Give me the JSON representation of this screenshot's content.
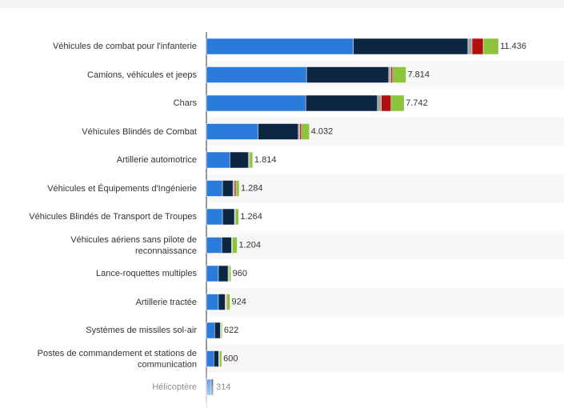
{
  "chart_data": {
    "type": "stacked-bar-horizontal",
    "categories": [
      "Véhicules de combat pour l'infanterie",
      "Camions, véhicules et jeeps",
      "Chars",
      "Véhicules Blindés de Combat",
      "Artillerie automotrice",
      "Véhicules et Équipements d'Ingénierie",
      "Véhicules Blindés de Transport de Troupes",
      "Véhicules aériens sans pilote de reconnaissance",
      "Lance-roquettes multiples",
      "Artillerie tractée",
      "Systèmes de missiles sol-air",
      "Postes de commandement et stations de communication",
      "Hélicoptère"
    ],
    "series": [
      {
        "color": "#2b7bdc",
        "values": [
          5750,
          3920,
          3890,
          2020,
          920,
          630,
          630,
          600,
          470,
          470,
          320,
          290,
          190
        ]
      },
      {
        "color": "#0d2742",
        "values": [
          4490,
          3220,
          2810,
          1580,
          730,
          410,
          470,
          380,
          380,
          260,
          230,
          190,
          80
        ]
      },
      {
        "color": "#a3a3a3",
        "values": [
          160,
          90,
          150,
          60,
          40,
          60,
          30,
          30,
          40,
          40,
          30,
          30,
          20
        ]
      },
      {
        "color": "#b2100f",
        "values": [
          440,
          60,
          380,
          60,
          0,
          60,
          0,
          0,
          0,
          30,
          0,
          0,
          0
        ]
      },
      {
        "color": "#8cc43c",
        "values": [
          596,
          524,
          512,
          312,
          124,
          124,
          134,
          194,
          70,
          124,
          42,
          90,
          24
        ]
      }
    ],
    "totals": [
      11436,
      7814,
      7742,
      4032,
      1814,
      1284,
      1264,
      1204,
      960,
      924,
      622,
      600,
      314
    ],
    "value_labels": [
      "11.436",
      "7.814",
      "7.742",
      "4.032",
      "1.814",
      "1.284",
      "1.264",
      "1.204",
      "960",
      "924",
      "622",
      "600",
      "314"
    ],
    "xlim": [
      0,
      14000
    ]
  }
}
